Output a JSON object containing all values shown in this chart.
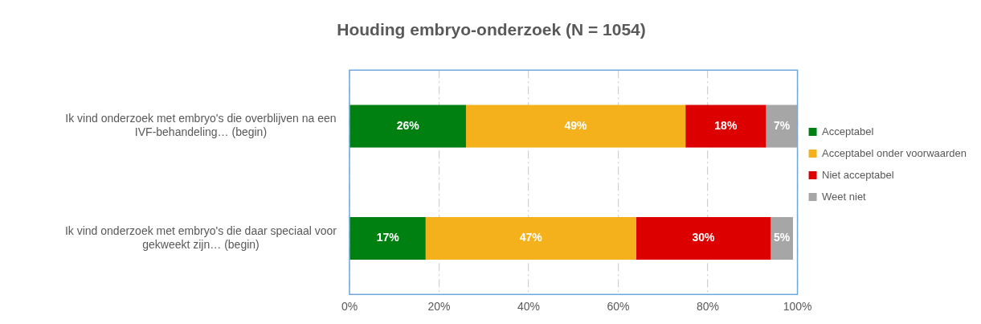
{
  "chart_data": {
    "type": "bar",
    "orientation": "horizontal",
    "stacked": true,
    "title": "Houding embryo-onderzoek (N = 1054)",
    "categories": [
      "Ik vind onderzoek met embryo's die overblijven na een IVF-behandeling… (begin)",
      "Ik vind onderzoek met embryo's die daar speciaal voor gekweekt zijn… (begin)"
    ],
    "series": [
      {
        "name": "Acceptabel",
        "color": "#008011",
        "values": [
          26,
          17
        ],
        "value_labels": [
          "26%",
          "17%"
        ]
      },
      {
        "name": "Acceptabel onder voorwaarden",
        "color": "#f4b11b",
        "values": [
          49,
          47
        ],
        "value_labels": [
          "49%",
          "47%"
        ]
      },
      {
        "name": "Niet acceptabel",
        "color": "#dc0000",
        "values": [
          18,
          30
        ],
        "value_labels": [
          "18%",
          "30%"
        ]
      },
      {
        "name": "Weet niet",
        "color": "#a6a6a6",
        "values": [
          7,
          5
        ],
        "value_labels": [
          "7%",
          "5%"
        ]
      }
    ],
    "xlim": [
      0,
      100
    ],
    "xticks": [
      {
        "value": 0,
        "label": "0%"
      },
      {
        "value": 20,
        "label": "20%"
      },
      {
        "value": 40,
        "label": "40%"
      },
      {
        "value": 60,
        "label": "60%"
      },
      {
        "value": 80,
        "label": "80%"
      },
      {
        "value": 100,
        "label": "100%"
      }
    ],
    "grid": "x",
    "legend": "right"
  }
}
